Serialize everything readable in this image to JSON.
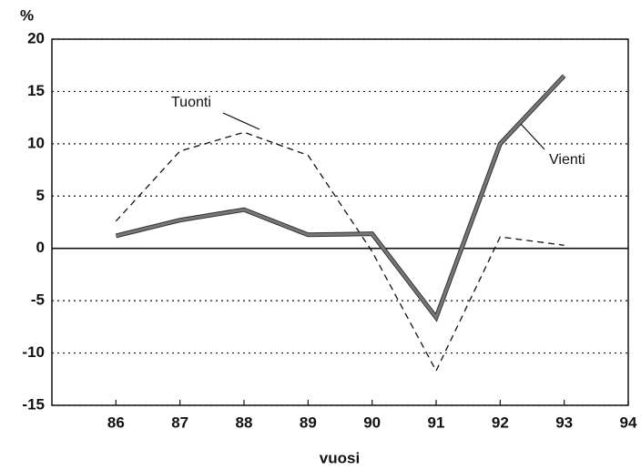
{
  "chart_data": {
    "type": "line",
    "y_label": "%",
    "x_label": "vuosi",
    "x": [
      86,
      87,
      88,
      89,
      90,
      91,
      92,
      93
    ],
    "xlim": [
      85,
      94
    ],
    "xticks": [
      86,
      87,
      88,
      89,
      90,
      91,
      92,
      93,
      94
    ],
    "ylim": [
      -15,
      20
    ],
    "yticks": [
      -15,
      -10,
      -5,
      0,
      5,
      10,
      15,
      20
    ],
    "grid": true,
    "series": [
      {
        "name": "Tuonti",
        "color": "#111111",
        "style": "dashed",
        "values": [
          2.6,
          9.3,
          11.1,
          8.9,
          -0.3,
          -11.7,
          1.1,
          0.3
        ]
      },
      {
        "name": "Vienti",
        "color": "#777777",
        "style": "solid",
        "values": [
          1.2,
          2.7,
          3.7,
          1.3,
          1.4,
          -6.6,
          10,
          16.5
        ]
      }
    ]
  }
}
